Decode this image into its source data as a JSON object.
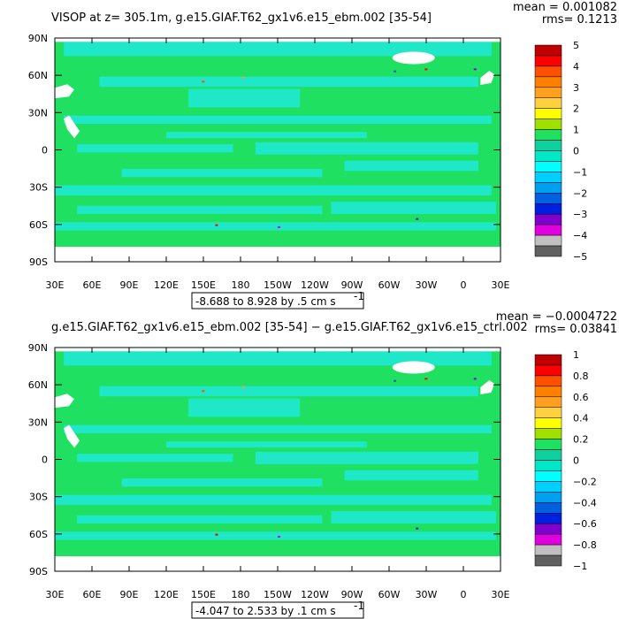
{
  "chart_data": [
    {
      "type": "heatmap",
      "title": "VISOP at z= 305.1m, g.e15.GIAF.T62_gx1v6.e15_ebm.002 [35-54]",
      "stat_mean": "mean = 0.001082",
      "stat_rms": "rms= 0.1213",
      "x_ticks": [
        "30E",
        "60E",
        "90E",
        "120E",
        "150E",
        "180",
        "150W",
        "120W",
        "90W",
        "60W",
        "30W",
        "0",
        "30E"
      ],
      "y_ticks": [
        "90N",
        "60N",
        "30N",
        "0",
        "30S",
        "60S",
        "90S"
      ],
      "range_label": "-8.688 to 8.928 by .5 cm s",
      "range_exp": "-1",
      "colorbar": {
        "labels": [
          "5",
          "4",
          "3",
          "2",
          "1",
          "0",
          "−1",
          "−2",
          "−3",
          "−4",
          "−5"
        ],
        "colors": [
          "#c00000",
          "#ff0000",
          "#ff5000",
          "#ff8000",
          "#ffa020",
          "#ffd040",
          "#ffff00",
          "#a0e000",
          "#20e060",
          "#10d0a0",
          "#00e8c8",
          "#00ffff",
          "#00d0ff",
          "#00a0f0",
          "#0060e0",
          "#0020e0",
          "#8000d0",
          "#e000e0",
          "#c0c0c0",
          "#606060"
        ]
      },
      "field_zero_color": "#1fe060",
      "field_neg_color": "#1ee8c8"
    },
    {
      "type": "heatmap",
      "title": "g.e15.GIAF.T62_gx1v6.e15_ebm.002 [35-54] − g.e15.GIAF.T62_gx1v6.e15_ctrl.002",
      "stat_mean": "mean = −0.0004722",
      "stat_rms": "rms= 0.03841",
      "x_ticks": [
        "30E",
        "60E",
        "90E",
        "120E",
        "150E",
        "180",
        "150W",
        "120W",
        "90W",
        "60W",
        "30W",
        "0",
        "30E"
      ],
      "y_ticks": [
        "90N",
        "60N",
        "30N",
        "0",
        "30S",
        "60S",
        "90S"
      ],
      "range_label": "-4.047 to 2.533 by .1 cm s",
      "range_exp": "-1",
      "colorbar": {
        "labels": [
          "1",
          "0.8",
          "0.6",
          "0.4",
          "0.2",
          "0",
          "−0.2",
          "−0.4",
          "−0.6",
          "−0.8",
          "−1"
        ],
        "colors": [
          "#c00000",
          "#ff0000",
          "#ff5000",
          "#ff8000",
          "#ffa020",
          "#ffd040",
          "#ffff00",
          "#a0e000",
          "#20e060",
          "#10d0a0",
          "#00e8c8",
          "#00ffff",
          "#00d0ff",
          "#00a0f0",
          "#0060e0",
          "#0020e0",
          "#8000d0",
          "#e000e0",
          "#c0c0c0",
          "#606060"
        ]
      },
      "field_zero_color": "#1fe060",
      "field_neg_color": "#1ee8c8"
    }
  ]
}
